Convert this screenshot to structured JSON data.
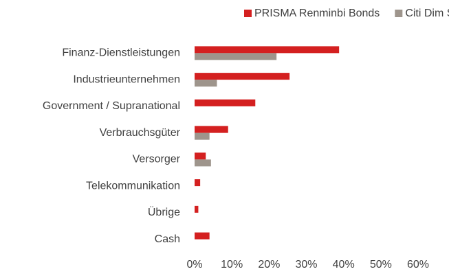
{
  "chart_data": {
    "type": "hbar",
    "categories": [
      "Finanz-Dienstleistungen",
      "Industrieunternehmen",
      "Government / Supranational",
      "Verbrauchsgüter",
      "Versorger",
      "Telekommunikation",
      "Übrige",
      "Cash"
    ],
    "series": [
      {
        "name": "PRISMA Renminbi Bonds",
        "color": "#d42020",
        "values": [
          38.8,
          25.5,
          16.3,
          9,
          3,
          1.5,
          1,
          4
        ]
      },
      {
        "name": "Citi Dim Sum [*]",
        "color": "#9e958c",
        "values": [
          22,
          6,
          null,
          4,
          4.4,
          null,
          null,
          null
        ]
      }
    ],
    "xlim": [
      0,
      60
    ],
    "xticks": [
      {
        "value": 0,
        "label": "0%"
      },
      {
        "value": 10,
        "label": "10%"
      },
      {
        "value": 20,
        "label": "20%"
      },
      {
        "value": 30,
        "label": "30%"
      },
      {
        "value": 40,
        "label": "40%"
      },
      {
        "value": 50,
        "label": "50%"
      },
      {
        "value": 60,
        "label": "60%"
      }
    ],
    "grid": false,
    "legend": "top-right"
  }
}
